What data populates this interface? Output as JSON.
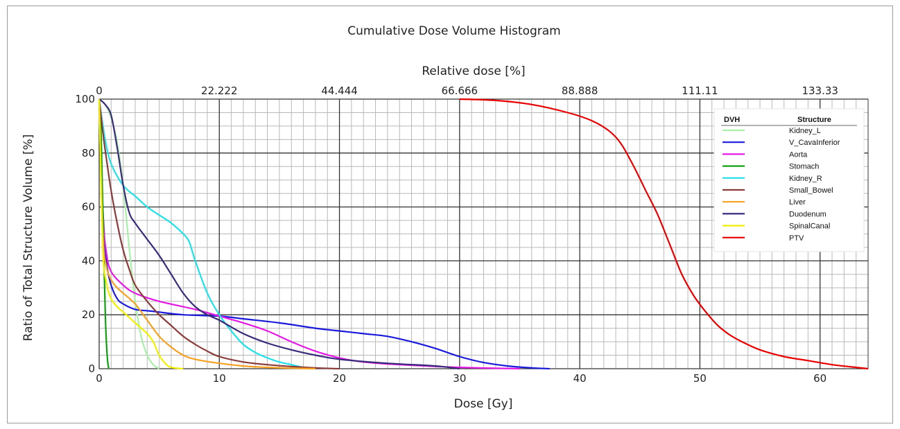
{
  "chart_data": {
    "type": "line",
    "title": "Cumulative Dose Volume Histogram",
    "xlabel": "Dose [Gy]",
    "ylabel": "Ratio of Total Structure Volume [%]",
    "x2label": "Relative dose [%]",
    "xlim": [
      0,
      64
    ],
    "ylim": [
      0,
      100
    ],
    "x_ticks": [
      0,
      10,
      20,
      30,
      40,
      50,
      60
    ],
    "x_tick_labels": [
      "0",
      "10",
      "20",
      "30",
      "40",
      "50",
      "60"
    ],
    "y_ticks": [
      0,
      20,
      40,
      60,
      80,
      100
    ],
    "y_tick_labels": [
      "0",
      "20",
      "40",
      "60",
      "80",
      "100"
    ],
    "x2_ticks": [
      0,
      10,
      20,
      30,
      40,
      50,
      60
    ],
    "x2_tick_labels": [
      "0",
      "22.222",
      "44.444",
      "66.666",
      "88.888",
      "111.11",
      "133.33"
    ],
    "grid": true,
    "legend_position": "top-right",
    "legend_headers": [
      "DVH",
      "Structure"
    ],
    "series": [
      {
        "name": "Kidney_L",
        "color": "#a8f0a8",
        "x": [
          0,
          0.5,
          1,
          1.5,
          2,
          2.5,
          3,
          3.5,
          4,
          4.5,
          5
        ],
        "y": [
          100,
          98,
          93,
          84,
          68,
          45,
          25,
          12,
          5,
          1.5,
          0
        ]
      },
      {
        "name": "V_CavaInferior",
        "color": "#1a1adc",
        "x": [
          0,
          0.3,
          0.6,
          1,
          1.5,
          2,
          3,
          4,
          5,
          7,
          10,
          12,
          15,
          18,
          20,
          22,
          24,
          26,
          28,
          30,
          32,
          34,
          36,
          37.5
        ],
        "y": [
          100,
          60,
          40,
          31,
          26,
          24,
          22,
          21.5,
          21,
          20,
          19.5,
          18.5,
          17,
          15,
          14,
          13,
          12,
          10,
          7.5,
          4.5,
          2.3,
          1,
          0.3,
          0
        ]
      },
      {
        "name": "Aorta",
        "color": "#e618e6",
        "x": [
          0,
          0.3,
          0.6,
          1,
          2,
          3,
          5,
          8,
          10,
          12,
          14,
          16,
          18,
          20,
          22,
          25,
          30,
          35
        ],
        "y": [
          100,
          58,
          43,
          36,
          31,
          28,
          25,
          22,
          19.5,
          17,
          14,
          10,
          6.5,
          4,
          2.5,
          1.5,
          0.5,
          0
        ]
      },
      {
        "name": "Stomach",
        "color": "#10a010",
        "x": [
          0,
          0.1,
          0.2,
          0.3,
          0.4,
          0.5,
          0.6,
          0.7,
          0.8
        ],
        "y": [
          100,
          95,
          80,
          60,
          40,
          22,
          10,
          3,
          0
        ]
      },
      {
        "name": "Kidney_R",
        "color": "#20e0e8",
        "x": [
          0,
          0.5,
          1,
          2,
          3,
          4,
          5,
          6,
          7,
          7.5,
          8,
          9,
          10,
          11,
          12,
          13,
          14,
          15,
          16,
          17,
          18
        ],
        "y": [
          100,
          85,
          76,
          68,
          64,
          60,
          57,
          54,
          50,
          47,
          40,
          28,
          20,
          14,
          9,
          6,
          4,
          2.5,
          1.5,
          0.5,
          0
        ]
      },
      {
        "name": "Small_Bowel",
        "color": "#8b3a3a",
        "x": [
          0,
          0.3,
          0.6,
          1,
          1.5,
          2,
          2.5,
          3,
          4,
          5,
          6,
          7,
          8,
          9,
          10,
          12,
          14,
          16,
          18,
          20
        ],
        "y": [
          100,
          88,
          78,
          66,
          54,
          44,
          37,
          31,
          25,
          20,
          16,
          12,
          9,
          6.5,
          4.5,
          2.5,
          1.5,
          0.8,
          0.3,
          0
        ]
      },
      {
        "name": "Liver",
        "color": "#f5a020",
        "x": [
          0,
          0.3,
          0.6,
          1,
          1.5,
          2,
          3,
          4,
          5,
          6,
          7,
          8,
          10,
          12,
          14,
          16,
          18
        ],
        "y": [
          100,
          50,
          38,
          33,
          30,
          28,
          24,
          18,
          12,
          8,
          5,
          3.5,
          2,
          1,
          0.5,
          0.2,
          0
        ]
      },
      {
        "name": "Duodenum",
        "color": "#3a2a7a",
        "x": [
          0,
          0.5,
          1,
          1.5,
          2,
          2.5,
          3,
          4,
          5,
          6,
          7,
          8,
          9,
          10,
          12,
          14,
          16,
          18,
          20,
          24,
          28,
          30
        ],
        "y": [
          100,
          98,
          94,
          82,
          68,
          58,
          54,
          48,
          42,
          35,
          28,
          23,
          20,
          18,
          13,
          9.5,
          7,
          5,
          3.5,
          2,
          1,
          0
        ]
      },
      {
        "name": "SpinalCanal",
        "color": "#f0f000",
        "x": [
          0,
          0.3,
          0.6,
          1,
          1.5,
          2,
          3,
          4,
          4.5,
          5,
          5.5,
          6,
          7
        ],
        "y": [
          100,
          45,
          32,
          26,
          23,
          21,
          17,
          13,
          10,
          5,
          2,
          0.5,
          0
        ]
      },
      {
        "name": "PTV",
        "color": "#e80000",
        "x": [
          30,
          33,
          36,
          39,
          41,
          42.5,
          43.5,
          44.5,
          45.5,
          46.5,
          47.5,
          48.5,
          49.5,
          50.5,
          51.5,
          52.5,
          53.5,
          55,
          57,
          59,
          61,
          63,
          64
        ],
        "y": [
          100,
          99.5,
          98,
          95,
          92,
          88,
          83,
          75,
          66,
          57,
          46,
          35,
          27,
          21,
          16,
          12.5,
          10,
          7,
          4.5,
          3,
          1.5,
          0.5,
          0
        ]
      }
    ]
  }
}
